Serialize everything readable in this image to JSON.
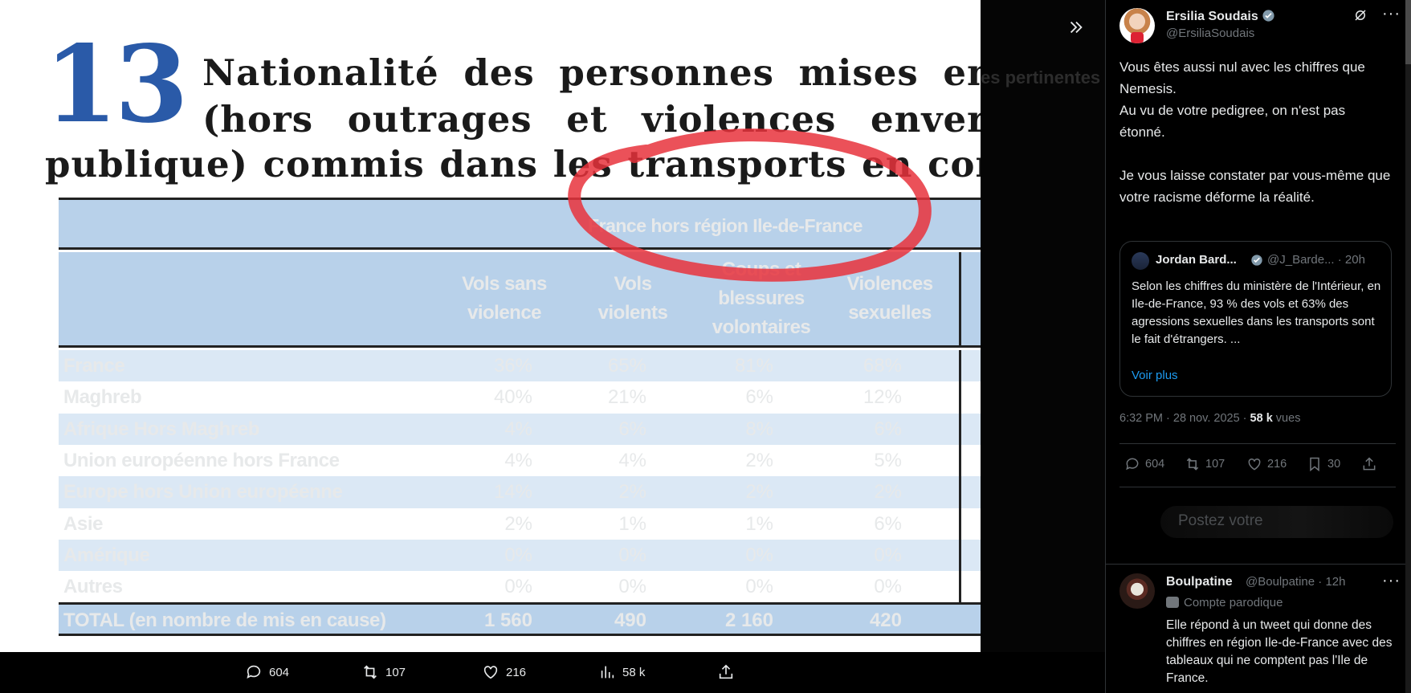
{
  "document": {
    "section_number": "13",
    "title_line1": "Nationalité des personnes mises en cau",
    "title_line2": "(hors outrages et violences envers les",
    "title_line3": "publique) commis dans les transports en commun",
    "region_header": "France hors région Ile-de-France",
    "columns": [
      "Vols sans violence",
      "Vols violents",
      "Coups et blessures volontaires",
      "Violences sexuelles"
    ],
    "rows": [
      {
        "label": "France",
        "values": [
          "36%",
          "65%",
          "81%",
          "68%"
        ]
      },
      {
        "label": "Maghreb",
        "values": [
          "40%",
          "21%",
          "6%",
          "12%"
        ]
      },
      {
        "label": "Afrique Hors Maghreb",
        "values": [
          "4%",
          "6%",
          "8%",
          "6%"
        ]
      },
      {
        "label": "Union européenne hors France",
        "values": [
          "4%",
          "4%",
          "2%",
          "5%"
        ]
      },
      {
        "label": "Europe hors Union européenne",
        "values": [
          "14%",
          "2%",
          "2%",
          "2%"
        ]
      },
      {
        "label": "Asie",
        "values": [
          "2%",
          "1%",
          "1%",
          "6%"
        ]
      },
      {
        "label": "Amérique",
        "values": [
          "0%",
          "0%",
          "0%",
          "0%"
        ]
      },
      {
        "label": "Autres",
        "values": [
          "0%",
          "0%",
          "0%",
          "0%"
        ]
      }
    ],
    "total": {
      "label": "TOTAL (en nombre de mis en cause)",
      "values": [
        "1 560",
        "490",
        "2 160",
        "420"
      ]
    },
    "annotation_color": "#e8333c",
    "header_bg": "#b8d1ea",
    "stripe_bg": "#dbe8f5"
  },
  "ghost": {
    "heading": "es pertinentes"
  },
  "media_bar": {
    "replies": "604",
    "reposts": "107",
    "likes": "216",
    "views": "58 k"
  },
  "tweet": {
    "author_name": "Ersilia Soudais",
    "author_handle": "@ErsiliaSoudais",
    "text": "Vous êtes aussi nul avec les chiffres que Nemesis.\nAu vu de votre pedigree, on n'est pas étonné.\n\nJe vous laisse constater par vous-même que votre racisme déforme la réalité.",
    "quote": {
      "author_name": "Jordan Bard...",
      "author_handle": "@J_Barde... · 20h",
      "text": "Selon les chiffres du ministère de l'Intérieur, en Ile-de-France, 93 % des vols et 63% des agressions sexuelles dans les transports sont le fait d'étrangers. ...",
      "show_more": "Voir plus"
    },
    "timestamp": "6:32 PM · 28 nov. 2025 · ",
    "views_count": "58 k",
    "views_label": " vues",
    "stats": {
      "replies": "604",
      "reposts": "107",
      "likes": "216",
      "bookmarks": "30"
    },
    "reply_placeholder": "Postez votre"
  },
  "reply": {
    "author_name": "Boulpatine",
    "author_handle": "@Boulpatine · 12h",
    "badge": "Compte parodique",
    "text": "Elle répond à un tweet qui donne des chiffres en région Ile-de-France avec des tableaux qui ne comptent pas l'Ile de France."
  },
  "colors": {
    "accent": "#1d9bf0",
    "muted": "#71767b",
    "border": "#2f3336",
    "title_blue": "#2a5aa8"
  }
}
